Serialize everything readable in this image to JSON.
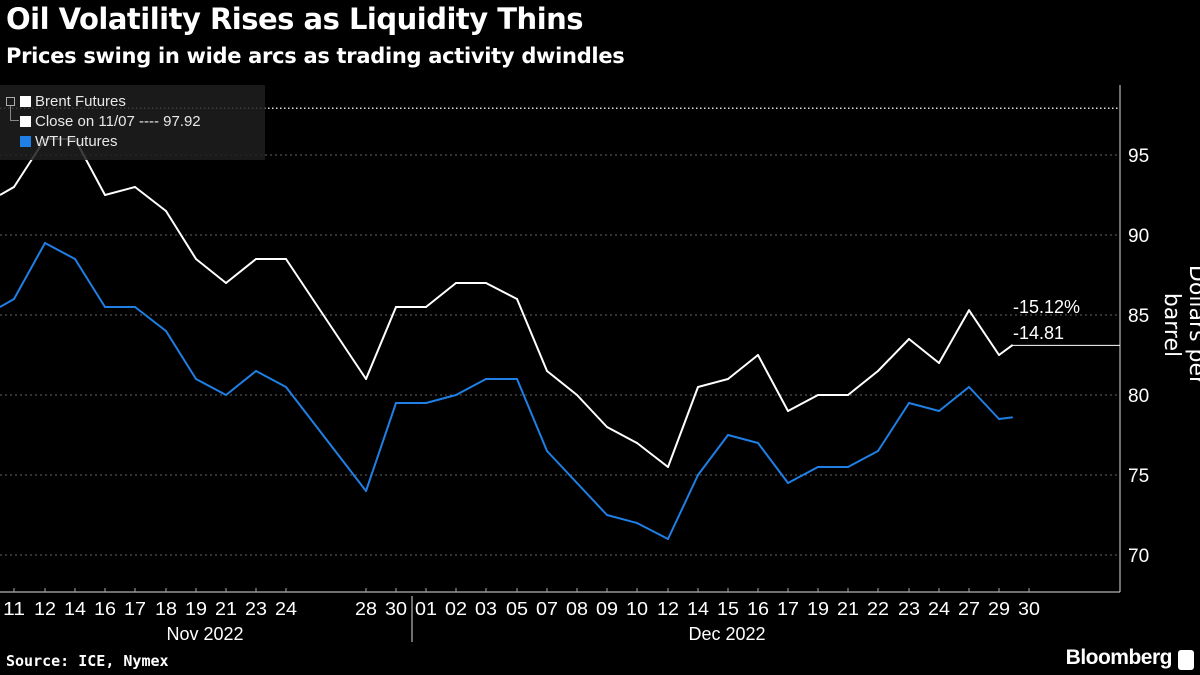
{
  "chart_data": {
    "type": "line",
    "title": "Oil Volatility Rises as Liquidity Thins",
    "subtitle": "Prices swing in wide arcs as trading activity dwindles",
    "ylabel": "Dollars per barrel",
    "ylim": [
      67,
      99
    ],
    "yticks": [
      70,
      75,
      80,
      85,
      90,
      95
    ],
    "grid": true,
    "legend_placement": "top-left",
    "x": [
      "11",
      "12",
      "14",
      "16",
      "17",
      "18",
      "19",
      "21",
      "23",
      "24",
      "28",
      "30",
      "01",
      "02",
      "03",
      "05",
      "07",
      "08",
      "09",
      "10",
      "12",
      "14",
      "15",
      "16",
      "17",
      "19",
      "21",
      "22",
      "23",
      "24",
      "27",
      "29",
      "30"
    ],
    "months": [
      {
        "label": "Nov 2022"
      },
      {
        "label": "Dec 2022"
      }
    ],
    "series": [
      {
        "name": "Brent Futures",
        "color": "#ffffff",
        "values": [
          93,
          96,
          96,
          92.5,
          93,
          91.5,
          88.5,
          87,
          88.5,
          88.5,
          81,
          85.5,
          85.5,
          87,
          87,
          86,
          81.5,
          80,
          78,
          77,
          75.5,
          80.5,
          81,
          82.5,
          79,
          80,
          80,
          81.5,
          83.5,
          82,
          85.3,
          82.5,
          83.1
        ]
      },
      {
        "name": "WTI Futures",
        "color": "#1f7fe5",
        "values": [
          86,
          89.5,
          88.5,
          85.5,
          85.5,
          84,
          81,
          80,
          81.5,
          80.5,
          74,
          79.5,
          79.5,
          80,
          81,
          81,
          76.5,
          74.5,
          72.5,
          72,
          71,
          75,
          77.5,
          77,
          74.5,
          75.5,
          75.5,
          76.5,
          79.5,
          79,
          80.5,
          78.5,
          78.6
        ]
      }
    ],
    "reference_line": {
      "label": "Close on 11/07 ---- 97.92",
      "value": 97.92
    },
    "annotations": [
      {
        "text": "-15.12%"
      },
      {
        "text": "-14.81"
      }
    ]
  },
  "footer": {
    "source": "Source: ICE, Nymex",
    "brand": "Bloomberg"
  }
}
